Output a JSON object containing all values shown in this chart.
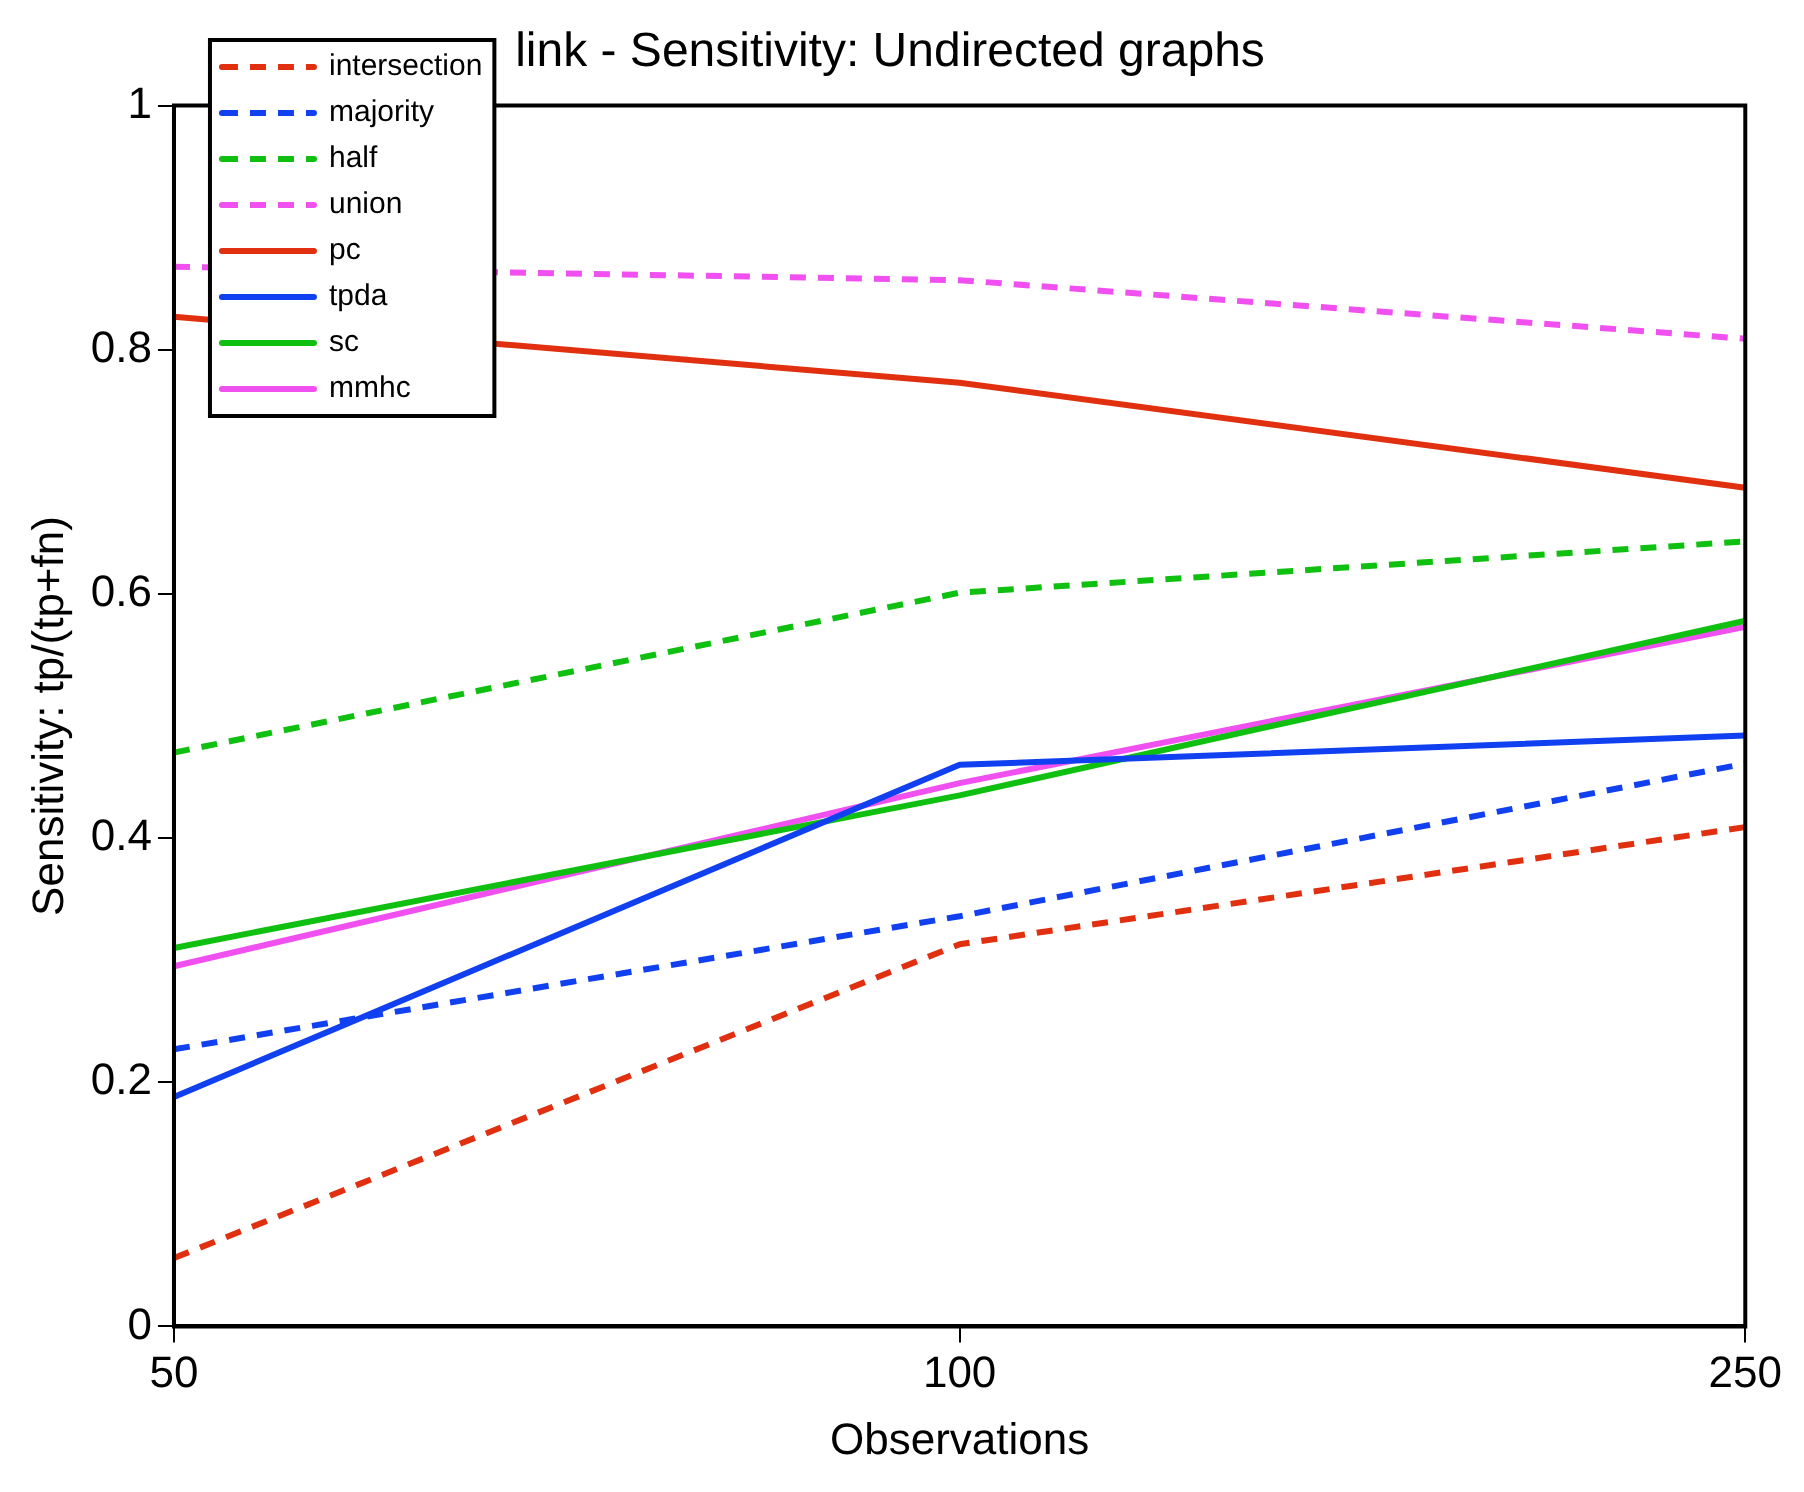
{
  "chart_data": {
    "type": "line",
    "title": "link - Sensitivity: Undirected graphs",
    "xlabel": "Observations",
    "ylabel": "Sensitivity: tp/(tp+fn)",
    "categories": [
      "50",
      "100",
      "250"
    ],
    "ylim": [
      0,
      1
    ],
    "yticks": [
      0,
      0.2,
      0.4,
      0.6,
      0.8,
      1
    ],
    "grid": false,
    "legend": "top left",
    "marker": "none",
    "series": [
      {
        "name": "intersection",
        "color": "#e03010",
        "line_style": "dashed",
        "values": [
          0.056,
          0.313,
          0.409
        ]
      },
      {
        "name": "majority",
        "color": "#1040f0",
        "line_style": "dashed",
        "values": [
          0.227,
          0.336,
          0.461
        ]
      },
      {
        "name": "half",
        "color": "#10c010",
        "line_style": "dashed",
        "values": [
          0.47,
          0.601,
          0.643
        ]
      },
      {
        "name": "union",
        "color": "#f050f0",
        "line_style": "dashed",
        "values": [
          0.868,
          0.857,
          0.809
        ]
      },
      {
        "name": "pc",
        "color": "#e03010",
        "line_style": "solid",
        "values": [
          0.827,
          0.773,
          0.687
        ]
      },
      {
        "name": "tpda",
        "color": "#1040f0",
        "line_style": "solid",
        "values": [
          0.188,
          0.46,
          0.484
        ]
      },
      {
        "name": "sc",
        "color": "#10c010",
        "line_style": "solid",
        "values": [
          0.31,
          0.435,
          0.578
        ]
      },
      {
        "name": "mmhc",
        "color": "#f050f0",
        "line_style": "solid",
        "values": [
          0.295,
          0.445,
          0.573
        ]
      }
    ]
  }
}
